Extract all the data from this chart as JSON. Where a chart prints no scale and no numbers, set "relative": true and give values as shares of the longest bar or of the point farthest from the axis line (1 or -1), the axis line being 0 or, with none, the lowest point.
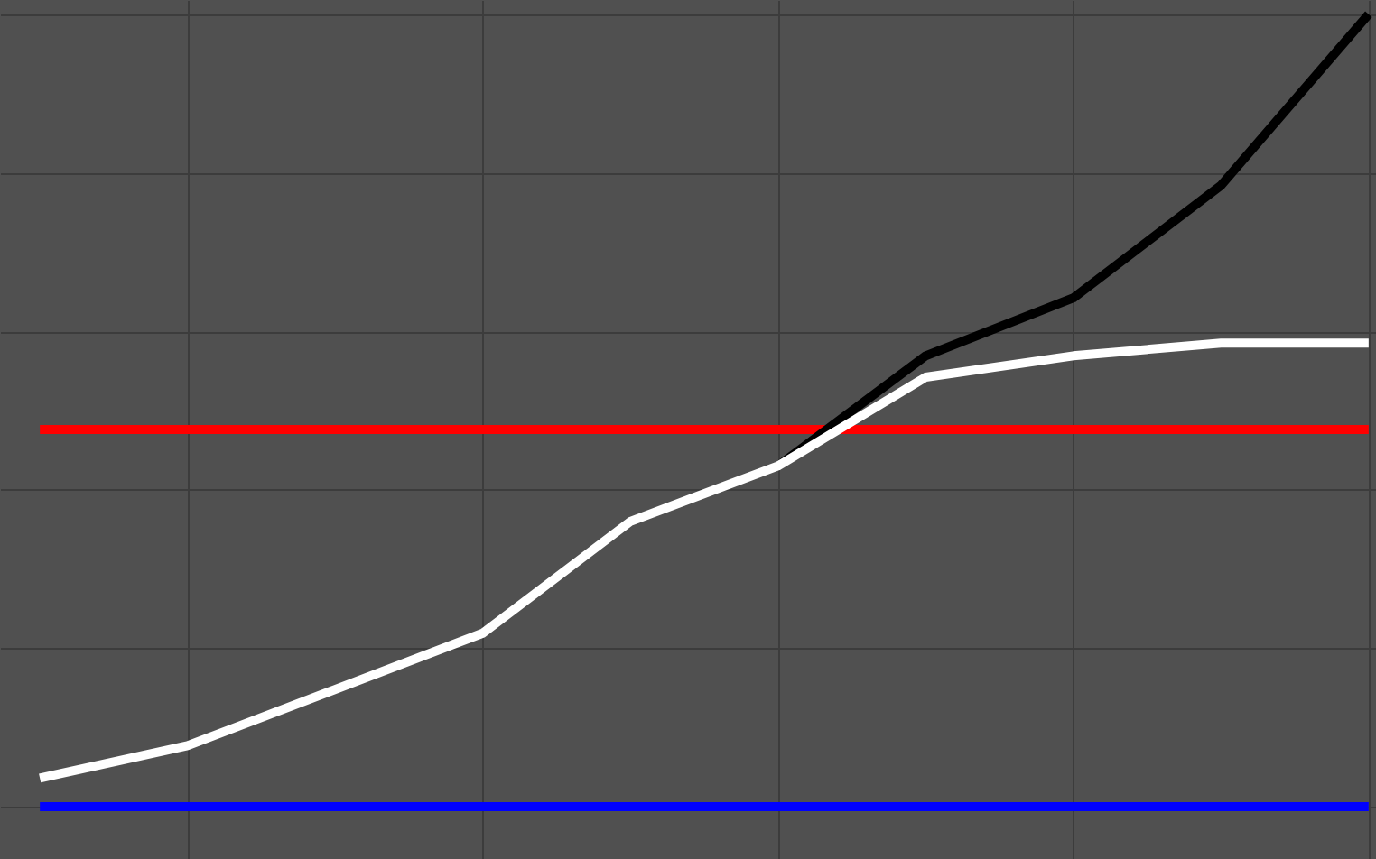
{
  "chart_data": {
    "type": "line",
    "relative": true,
    "grid": true,
    "line_style": "solid",
    "marker": "none",
    "categories": [
      null,
      null,
      null,
      null,
      null,
      null,
      null,
      null,
      null,
      null
    ],
    "series": [
      {
        "color": "#0000ff",
        "values": [
          0,
          0,
          0,
          0,
          0,
          0,
          0,
          0,
          0,
          0
        ]
      },
      {
        "color": "#ff0000",
        "values": [
          0.476,
          0.476,
          0.476,
          0.476,
          0.476,
          0.476,
          0.476,
          0.476,
          0.476,
          0.476
        ]
      },
      {
        "color": "#000000",
        "values": [
          null,
          null,
          null,
          null,
          null,
          0.43,
          0.569,
          0.642,
          0.784,
          1
        ]
      },
      {
        "color": "#ffffff",
        "values": [
          0.036,
          0.077,
          0.148,
          0.219,
          0.36,
          0.43,
          0.542,
          0.569,
          0.585,
          0.585
        ]
      }
    ]
  }
}
